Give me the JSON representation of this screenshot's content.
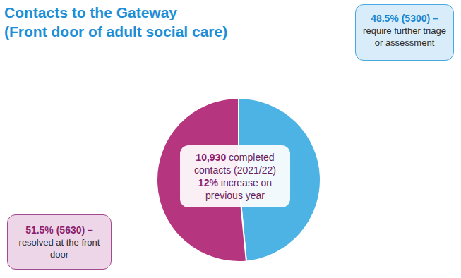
{
  "chart_data": {
    "type": "pie",
    "title": "Contacts to the Gateway",
    "subtitle": "(Front door of adult social care)",
    "categories": [
      "require further triage or assessment",
      "resolved at the front door"
    ],
    "values": [
      48.5,
      51.5
    ],
    "value_labels": [
      "48.5% (5300) –",
      "51.5% (5630) –"
    ],
    "colors": [
      "#4db2e4",
      "#b5367f"
    ],
    "data_labels": true,
    "annotations": [
      {
        "emphasis": "10,930",
        "text": "completed contacts (2021/22)"
      },
      {
        "emphasis": "12%",
        "text": "increase on previous year"
      }
    ]
  }
}
